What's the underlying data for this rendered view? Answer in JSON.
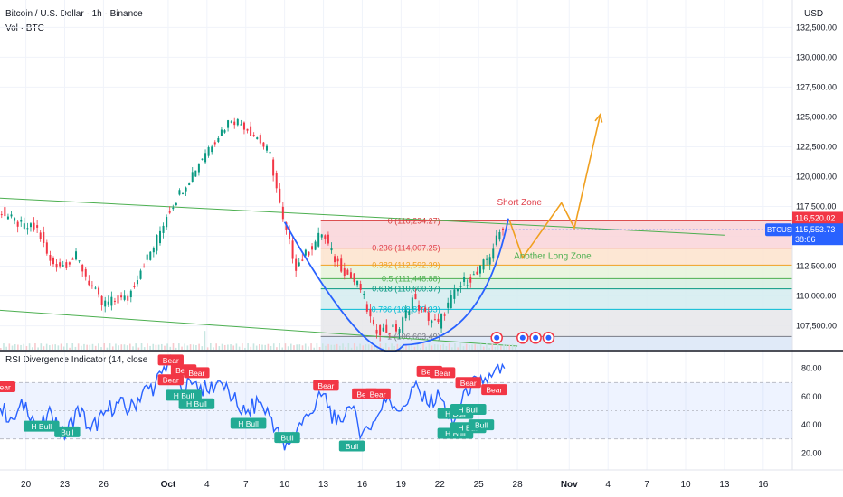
{
  "header": {
    "title": "Bitcoin / U.S. Dollar · 1h · Binance",
    "volume_label": "Vol · BTC",
    "currency": "USD",
    "rsi_title": "RSI Divergence Indicator (14, close"
  },
  "chart_data": {
    "type": "line",
    "title": "Bitcoin / U.S. Dollar · 1h · Binance",
    "price_axis": {
      "ticks": [
        107500,
        110000,
        112500,
        115000,
        117500,
        120000,
        122500,
        125000,
        127500,
        130000,
        132500
      ],
      "tick_labels": [
        "107,500.00",
        "110,000.00",
        "112,500.00",
        "115,000.00",
        "117,500.00",
        "120,000.00",
        "122,500.00",
        "125,000.00",
        "127,500.00",
        "130,000.00",
        "132,500.00"
      ],
      "ylim": [
        105500,
        134800
      ]
    },
    "x_axis": {
      "tick_labels": [
        "20",
        "23",
        "26",
        "Oct",
        "4",
        "7",
        "10",
        "13",
        "16",
        "19",
        "22",
        "25",
        "28",
        "Nov",
        "4",
        "7",
        "10",
        "13",
        "16"
      ],
      "bold_labels": [
        "Oct",
        "Nov"
      ],
      "range": [
        "Sep 18",
        "Nov 18"
      ]
    },
    "price_series": {
      "name": "BTCUSD",
      "points": [
        [
          "Sep 18",
          117300
        ],
        [
          "Sep 19",
          116400
        ],
        [
          "Sep 20",
          115800
        ],
        [
          "Sep 21",
          115600
        ],
        [
          "Sep 22",
          112800
        ],
        [
          "Sep 23",
          112600
        ],
        [
          "Sep 24",
          113300
        ],
        [
          "Sep 25",
          111200
        ],
        [
          "Sep 26",
          109300
        ],
        [
          "Sep 27",
          109600
        ],
        [
          "Sep 28",
          109800
        ],
        [
          "Sep 29",
          112300
        ],
        [
          "Sep 30",
          114100
        ],
        [
          "Oct 1",
          116800
        ],
        [
          "Oct 2",
          118600
        ],
        [
          "Oct 3",
          120300
        ],
        [
          "Oct 4",
          122100
        ],
        [
          "Oct 5",
          123500
        ],
        [
          "Oct 6",
          124900
        ],
        [
          "Oct 7",
          124300
        ],
        [
          "Oct 8",
          123300
        ],
        [
          "Oct 9",
          121800
        ],
        [
          "Oct 10",
          116200
        ],
        [
          "Oct 11",
          112500
        ],
        [
          "Oct 12",
          113800
        ],
        [
          "Oct 13",
          115300
        ],
        [
          "Oct 14",
          113100
        ],
        [
          "Oct 15",
          111800
        ],
        [
          "Oct 16",
          110600
        ],
        [
          "Oct 17",
          107200
        ],
        [
          "Oct 18",
          107100
        ],
        [
          "Oct 19",
          107300
        ],
        [
          "Oct 20",
          109800
        ],
        [
          "Oct 21",
          108400
        ],
        [
          "Oct 22",
          107600
        ],
        [
          "Oct 23",
          109800
        ],
        [
          "Oct 24",
          111200
        ],
        [
          "Oct 25",
          111800
        ],
        [
          "Oct 26",
          113500
        ],
        [
          "Oct 27",
          115900
        ]
      ]
    },
    "fib_levels": [
      {
        "ratio": "0",
        "price": 116294.27,
        "label": "0 (116,294.27)",
        "color": "#d83b3b",
        "fill": "#f9d4d8"
      },
      {
        "ratio": "0.236",
        "price": 114007.25,
        "label": "0.236 (114,007.25)",
        "color": "#e0404c",
        "fill": "#fde3cc"
      },
      {
        "ratio": "0.382",
        "price": 112592.39,
        "label": "0.382 (112,592.39)",
        "color": "#f0a020",
        "fill": "#e6f3da"
      },
      {
        "ratio": "0.5",
        "price": 111448.88,
        "label": "0.5 (111,448.88)",
        "color": "#4caf50",
        "fill": "#d6efe0"
      },
      {
        "ratio": "0.618",
        "price": 110600.37,
        "label": "0.618 (110,600.37)",
        "color": "#089981",
        "fill": "#d3ecf0"
      },
      {
        "ratio": "0.786",
        "price": 108877.33,
        "label": "0.786 (108,877.33)",
        "color": "#00bcd4",
        "fill": "#e6e6ea"
      },
      {
        "ratio": "1",
        "price": 106603.49,
        "label": "1 (106,603.49)",
        "color": "#787b86",
        "fill": "#dbe6f7"
      }
    ],
    "projection_path": [
      [
        "Oct 27",
        116300
      ],
      [
        "Oct 28",
        113200
      ],
      [
        "Oct 31",
        117800
      ],
      [
        "Nov 1",
        115700
      ],
      [
        "Nov 3",
        125200
      ]
    ],
    "current_price": {
      "name": "BTCUSD",
      "value": "115,553.73",
      "countdown": "38:06",
      "color": "#2962ff"
    },
    "marked_price": {
      "value": "116,520.02",
      "color": "#f23645"
    },
    "annotations": [
      "Short Zone",
      "Another Long Zone"
    ],
    "rsi": {
      "ticks": [
        20,
        40,
        60,
        80
      ],
      "tick_labels": [
        "20.00",
        "40.00",
        "60.00",
        "80.00"
      ],
      "ylim": [
        8,
        92
      ],
      "band": [
        30,
        70
      ],
      "points": [
        [
          "Sep 18",
          52
        ],
        [
          "Sep 19",
          44
        ],
        [
          "Sep 20",
          56
        ],
        [
          "Sep 21",
          36
        ],
        [
          "Sep 22",
          48
        ],
        [
          "Sep 23",
          30
        ],
        [
          "Sep 24",
          53
        ],
        [
          "Sep 25",
          36
        ],
        [
          "Sep 26",
          47
        ],
        [
          "Sep 27",
          56
        ],
        [
          "Sep 28",
          50
        ],
        [
          "Sep 29",
          63
        ],
        [
          "Sep 30",
          68
        ],
        [
          "Oct 1",
          85
        ],
        [
          "Oct 2",
          66
        ],
        [
          "Oct 3",
          70
        ],
        [
          "Oct 4",
          64
        ],
        [
          "Oct 5",
          71
        ],
        [
          "Oct 6",
          58
        ],
        [
          "Oct 7",
          48
        ],
        [
          "Oct 8",
          56
        ],
        [
          "Oct 9",
          45
        ],
        [
          "Oct 10",
          22
        ],
        [
          "Oct 11",
          38
        ],
        [
          "Oct 12",
          48
        ],
        [
          "Oct 13",
          62
        ],
        [
          "Oct 14",
          40
        ],
        [
          "Oct 15",
          53
        ],
        [
          "Oct 16",
          34
        ],
        [
          "Oct 17",
          43
        ],
        [
          "Oct 18",
          60
        ],
        [
          "Oct 19",
          50
        ],
        [
          "Oct 20",
          67
        ],
        [
          "Oct 21",
          55
        ],
        [
          "Oct 22",
          60
        ],
        [
          "Oct 23",
          40
        ],
        [
          "Oct 24",
          66
        ],
        [
          "Oct 25",
          70
        ],
        [
          "Oct 26",
          74
        ],
        [
          "Oct 27",
          80
        ]
      ],
      "signals": [
        {
          "label": "Bear",
          "x": "Sep 18",
          "y": 67,
          "kind": "bear"
        },
        {
          "label": "H Bull",
          "x": "Sep 21",
          "y": 39,
          "kind": "bull"
        },
        {
          "label": "Bull",
          "x": "Sep 23",
          "y": 35,
          "kind": "bull"
        },
        {
          "label": "Bear",
          "x": "Oct 1",
          "y": 86,
          "kind": "bear"
        },
        {
          "label": "Bear",
          "x": "Oct 1",
          "y": 72,
          "kind": "bear"
        },
        {
          "label": "Bear",
          "x": "Oct 2",
          "y": 79,
          "kind": "bear"
        },
        {
          "label": "Bear",
          "x": "Oct 3",
          "y": 77,
          "kind": "bear"
        },
        {
          "label": "H Bull",
          "x": "Oct 2",
          "y": 61,
          "kind": "bull"
        },
        {
          "label": "H Bull",
          "x": "Oct 3",
          "y": 55,
          "kind": "bull"
        },
        {
          "label": "H Bull",
          "x": "Oct 7",
          "y": 41,
          "kind": "bull"
        },
        {
          "label": "Bull",
          "x": "Oct 10",
          "y": 31,
          "kind": "bull"
        },
        {
          "label": "Bear",
          "x": "Oct 13",
          "y": 68,
          "kind": "bear"
        },
        {
          "label": "Bull",
          "x": "Oct 15",
          "y": 25,
          "kind": "bull"
        },
        {
          "label": "Bear",
          "x": "Oct 16",
          "y": 62,
          "kind": "bear"
        },
        {
          "label": "Bear",
          "x": "Oct 17",
          "y": 62,
          "kind": "bear"
        },
        {
          "label": "Bear",
          "x": "Oct 21",
          "y": 78,
          "kind": "bear"
        },
        {
          "label": "Bear",
          "x": "Oct 22",
          "y": 77,
          "kind": "bear"
        },
        {
          "label": "H Bull",
          "x": "Oct 23",
          "y": 48,
          "kind": "bull"
        },
        {
          "label": "H Bull",
          "x": "Oct 23",
          "y": 34,
          "kind": "bull"
        },
        {
          "label": "Bear",
          "x": "Oct 24",
          "y": 70,
          "kind": "bear"
        },
        {
          "label": "H Bull",
          "x": "Oct 24",
          "y": 51,
          "kind": "bull"
        },
        {
          "label": "H Bull",
          "x": "Oct 24",
          "y": 38,
          "kind": "bull"
        },
        {
          "label": "Bull",
          "x": "Oct 25",
          "y": 40,
          "kind": "bull"
        },
        {
          "label": "Bear",
          "x": "Oct 26",
          "y": 65,
          "kind": "bear"
        }
      ]
    },
    "colors": {
      "up": "#089981",
      "down": "#f23645",
      "rsi_line": "#2962ff",
      "curve": "#2962ff",
      "projection": "#f0a020",
      "channel": "#4caf50",
      "bear_label": "#f23645",
      "bull_label": "#22ab94"
    }
  }
}
